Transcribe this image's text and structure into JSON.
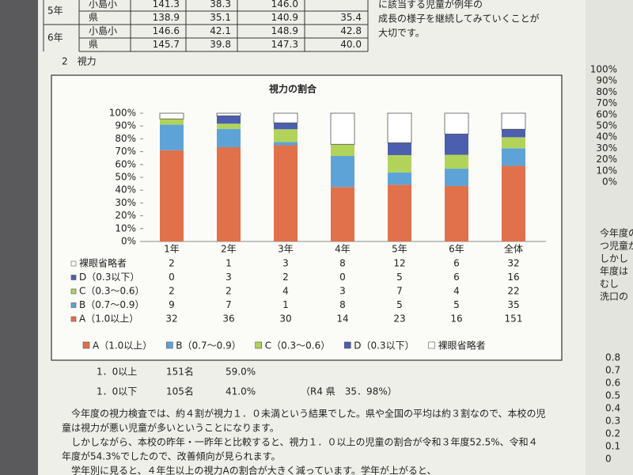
{
  "top_table": {
    "rows": [
      {
        "grade": "5年",
        "school": "小島小",
        "values": [
          "141.3",
          "38.3",
          "146.0"
        ]
      },
      {
        "school": "県",
        "values": [
          "138.9",
          "35.1",
          "140.9",
          "35.4"
        ]
      },
      {
        "grade": "6年",
        "school": "小島小",
        "values": [
          "146.6",
          "42.1",
          "148.9",
          "42.8"
        ]
      },
      {
        "school": "県",
        "values": [
          "145.7",
          "39.8",
          "147.3",
          "40.0"
        ]
      }
    ]
  },
  "side_text": [
    "に該当する児童が例年の",
    "成長の様子を継続してみていくことが",
    "大切です。"
  ],
  "section_label": "2　視力",
  "chart_data": {
    "type": "bar",
    "stacked": "percent",
    "title": "視力の割合",
    "categories": [
      "1年",
      "2年",
      "3年",
      "4年",
      "5年",
      "6年",
      "全体"
    ],
    "series": [
      {
        "name": "A（1.0以上）",
        "color": "#e0714b",
        "values": [
          32,
          36,
          30,
          14,
          23,
          16,
          151
        ]
      },
      {
        "name": "B（0.7～0.9）",
        "color": "#5ea3d8",
        "values": [
          9,
          7,
          1,
          8,
          5,
          5,
          35
        ]
      },
      {
        "name": "C（0.3～0.6）",
        "color": "#b2d35a",
        "values": [
          2,
          2,
          4,
          3,
          7,
          4,
          22
        ]
      },
      {
        "name": "D（0.3以下）",
        "color": "#4b5fae",
        "values": [
          0,
          3,
          2,
          0,
          5,
          6,
          16
        ]
      },
      {
        "name": "裸眼省略者",
        "color": "#ffffff",
        "values": [
          2,
          1,
          3,
          8,
          12,
          6,
          32
        ]
      }
    ],
    "ylim": [
      0,
      100
    ],
    "yticks": [
      {
        "value": 0,
        "label": "0%"
      },
      {
        "value": 10,
        "label": "10%"
      },
      {
        "value": 20,
        "label": "20%"
      },
      {
        "value": 30,
        "label": "30%"
      },
      {
        "value": 40,
        "label": "40%"
      },
      {
        "value": 50,
        "label": "50%"
      },
      {
        "value": 60,
        "label": "60%"
      },
      {
        "value": 70,
        "label": "70%"
      },
      {
        "value": 80,
        "label": "80%"
      },
      {
        "value": 90,
        "label": "90%"
      },
      {
        "value": 100,
        "label": "100%"
      }
    ],
    "legend": "bottom"
  },
  "summary": [
    {
      "label": "1．0以上",
      "count": "151名",
      "percent": "59.0%"
    },
    {
      "label": "1．0以下",
      "count": "105名",
      "percent": "41.0%",
      "note": "（R4 県　35．98%）"
    }
  ],
  "paragraph": [
    "今年度の視力検査では、約４割が視力１．０未満という結果でした。県や全国の平均は約３割なので、本校の児",
    "童は視力が悪い児童が多いということになります。",
    "しかしながら、本校の昨年・一昨年と比較すると、視力１．０以上の児童の割合が令和３年度52.5%、令和４",
    "年度が54.3%でしたので、改善傾向が見られます。",
    "学年別に見ると、４年生以上の視力Aの割合が大きく減っています。学年が上がると、"
  ],
  "right_column": {
    "percent_labels": [
      "100%",
      "90%",
      "80%",
      "70%",
      "60%",
      "50%",
      "40%",
      "30%",
      "20%",
      "10%",
      "0%"
    ],
    "text": [
      "今年度の",
      "つ児童が",
      "しかし",
      "年度は",
      "むし",
      "洗口の"
    ],
    "scale_labels": [
      "0.8",
      "0.7",
      "0.6",
      "0.5",
      "0.4",
      "0.3",
      "0.2",
      "0.1",
      "0"
    ]
  }
}
